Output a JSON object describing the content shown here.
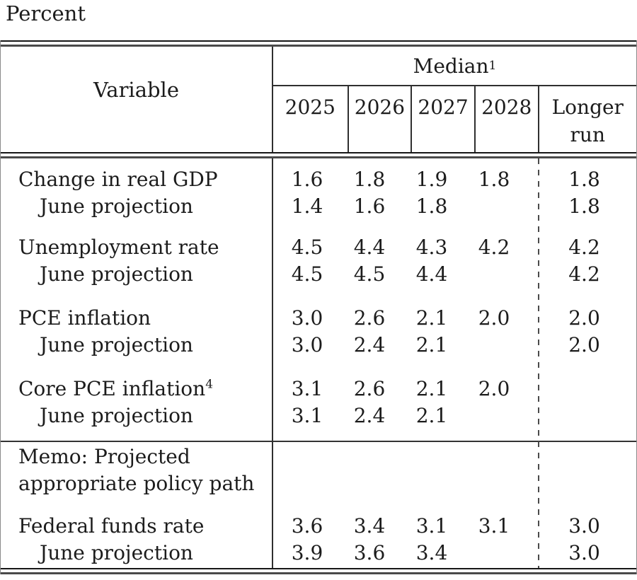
{
  "page": {
    "unit_label": "Percent"
  },
  "table": {
    "header": {
      "variable": "Variable",
      "median": "Median",
      "median_sup": "1",
      "years": [
        "2025",
        "2026",
        "2027",
        "2028"
      ],
      "longer_run": "Longer run"
    },
    "rows": [
      {
        "label": "Change in real GDP",
        "indent": false,
        "values": [
          "1.6",
          "1.8",
          "1.9",
          "1.8"
        ],
        "longer_run": "1.8"
      },
      {
        "label": "June projection",
        "indent": true,
        "values": [
          "1.4",
          "1.6",
          "1.8",
          ""
        ],
        "longer_run": "1.8"
      },
      {
        "label": "Unemployment rate",
        "indent": false,
        "values": [
          "4.5",
          "4.4",
          "4.3",
          "4.2"
        ],
        "longer_run": "4.2"
      },
      {
        "label": "June projection",
        "indent": true,
        "values": [
          "4.5",
          "4.5",
          "4.4",
          ""
        ],
        "longer_run": "4.2"
      },
      {
        "label": "PCE inflation",
        "indent": false,
        "values": [
          "3.0",
          "2.6",
          "2.1",
          "2.0"
        ],
        "longer_run": "2.0"
      },
      {
        "label": "June projection",
        "indent": true,
        "values": [
          "3.0",
          "2.4",
          "2.1",
          ""
        ],
        "longer_run": "2.0"
      },
      {
        "label": "Core PCE inflation",
        "label_sup": "4",
        "indent": false,
        "values": [
          "3.1",
          "2.6",
          "2.1",
          "2.0"
        ],
        "longer_run": ""
      },
      {
        "label": "June projection",
        "indent": true,
        "values": [
          "3.1",
          "2.4",
          "2.1",
          ""
        ],
        "longer_run": ""
      },
      {
        "label": "Federal funds rate",
        "indent": false,
        "values": [
          "3.6",
          "3.4",
          "3.1",
          "3.1"
        ],
        "longer_run": "3.0"
      },
      {
        "label": "June projection",
        "indent": true,
        "values": [
          "3.9",
          "3.6",
          "3.4",
          ""
        ],
        "longer_run": "3.0"
      }
    ],
    "memo": {
      "line1": "Memo: Projected",
      "line2": "appropriate policy path"
    }
  },
  "colors": {
    "text": "#1c1c1c",
    "rule_thin": "#161616",
    "rule_thick": "#4a4a4a",
    "divider": "#2f2f2f"
  }
}
